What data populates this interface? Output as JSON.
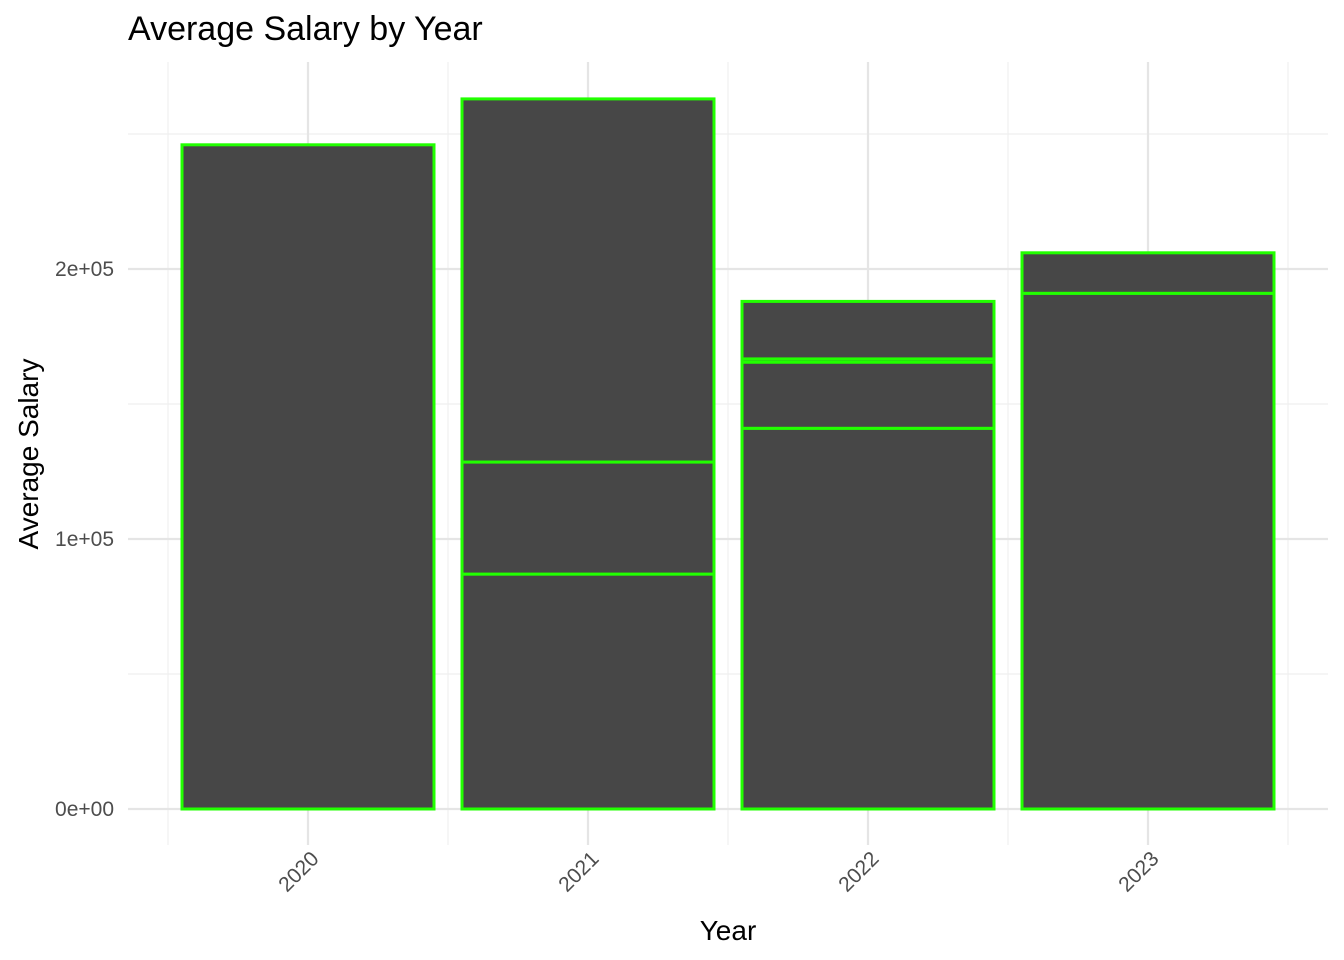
{
  "chart_data": {
    "type": "bar",
    "title": "Average Salary by Year",
    "xlabel": "Year",
    "ylabel": "Average Salary",
    "categories": [
      "2020",
      "2021",
      "2022",
      "2023"
    ],
    "stacked": true,
    "segments": [
      [
        246000
      ],
      [
        87000,
        41500,
        134500
      ],
      [
        141000,
        24500,
        1200,
        21300
      ],
      [
        191000,
        15000
      ]
    ],
    "totals": [
      246000,
      263000,
      188000,
      206000
    ],
    "yticks": [
      0,
      100000,
      200000
    ],
    "ytick_labels": [
      "0e+00",
      "1e+05",
      "2e+05"
    ],
    "ylim": [
      -12000,
      276000
    ],
    "grid": true,
    "colors": {
      "fill": "#474747",
      "outline": "#22ff00",
      "grid": "#e5e5e5"
    }
  }
}
